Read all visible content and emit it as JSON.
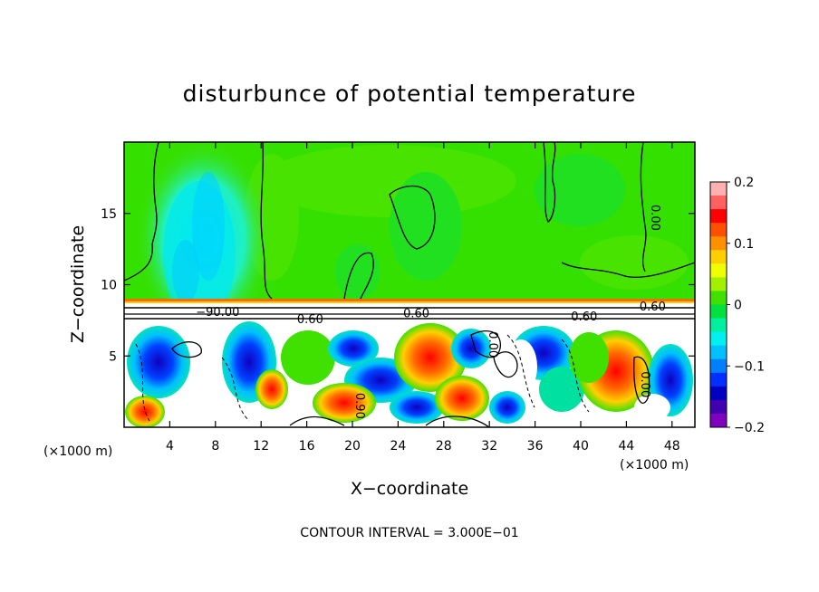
{
  "chart_data": {
    "type": "heatmap",
    "title": "disturbunce of potential temperature",
    "xlabel": "X−coordinate",
    "ylabel": "Z−coordinate",
    "x_unit_left": "(×1000 m)",
    "x_unit_right": "(×1000 m)",
    "footer": "CONTOUR INTERVAL = 3.000E−01",
    "xlim": [
      0,
      50
    ],
    "ylim": [
      0,
      20
    ],
    "x_ticks": [
      4,
      8,
      12,
      16,
      20,
      24,
      28,
      32,
      36,
      40,
      44,
      48
    ],
    "x_tick_labels": [
      "4",
      "8",
      "12",
      "16",
      "20",
      "24",
      "28",
      "32",
      "36",
      "40",
      "44",
      "48"
    ],
    "y_ticks": [
      5,
      10,
      15
    ],
    "y_tick_labels": [
      "5",
      "10",
      "15"
    ],
    "colorbar": {
      "range": [
        -0.2,
        0.2
      ],
      "tick_values": [
        0.2,
        0.1,
        0,
        -0.1,
        -0.2
      ],
      "tick_labels": [
        "0.2",
        "0.1",
        "0",
        "−0.1",
        "−0.2"
      ],
      "colors": [
        "#ffb0b0",
        "#ff6060",
        "#ff0000",
        "#ff5000",
        "#ff9000",
        "#ffd000",
        "#f0ff00",
        "#a0f000",
        "#40e000",
        "#00e040",
        "#00f0a0",
        "#00f0f0",
        "#00c0ff",
        "#0080ff",
        "#0030ff",
        "#0000c0",
        "#4000b0",
        "#8000c0"
      ]
    },
    "contour_labels": [
      {
        "text": "0.60",
        "x": 46.3,
        "z": 8.2
      },
      {
        "text": "0.00",
        "x": 46.2,
        "z": 14.7
      },
      {
        "text": "−90.00",
        "x": 8.2,
        "z": 7.8
      },
      {
        "text": "0.60",
        "x": 16.3,
        "z": 7.3
      },
      {
        "text": "0.60",
        "x": 25.6,
        "z": 7.7
      },
      {
        "text": "0.90",
        "x": 20.3,
        "z": 1.5
      },
      {
        "text": "0.00",
        "x": 32.0,
        "z": 5.8
      },
      {
        "text": "0.00",
        "x": 45.3,
        "z": 3.0
      },
      {
        "text": "0.60",
        "x": 40.3,
        "z": 7.5
      }
    ],
    "regions": {
      "upper_layer": {
        "z_range": [
          9,
          20
        ],
        "typical_value": 0.0
      },
      "cool_plume": {
        "x_range": [
          3,
          10
        ],
        "z_range": [
          9,
          19
        ],
        "typical_value": -0.07
      },
      "inversion_band": {
        "z_range": [
          7.5,
          9
        ],
        "typical_value": "off-scale"
      },
      "lower_layer": {
        "z_range": [
          0,
          7.5
        ],
        "value_range": [
          -0.2,
          0.2
        ]
      }
    }
  }
}
